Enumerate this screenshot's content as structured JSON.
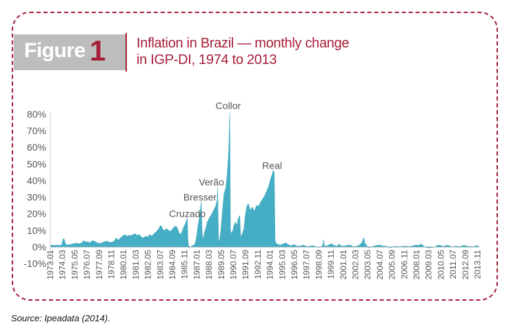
{
  "figure": {
    "label_word": "Figure",
    "label_number": "1",
    "title_line1": "Inflation in Brazil — monthly change",
    "title_line2": "in IGP-DI, 1974 to 2013",
    "accent_color": "#a51d36",
    "box_color": "#bdbdbe"
  },
  "source": "Source:  Ipeadata (2014).",
  "chart_data": {
    "type": "area",
    "title": "Inflation in Brazil — monthly change in IGP-DI, 1974 to 2013",
    "xlabel": "",
    "ylabel": "",
    "fill_color": "#45aec4",
    "ylim": [
      -10,
      80
    ],
    "yticks": [
      -10,
      0,
      10,
      20,
      30,
      40,
      50,
      60,
      70,
      80
    ],
    "ytick_labels": [
      "-10%",
      "0%",
      "10%",
      "20%",
      "30%",
      "40%",
      "50%",
      "60%",
      "70%",
      "80%"
    ],
    "xlim": [
      1973.0,
      2014.0
    ],
    "xtick_labels": [
      "1973.01",
      "1974.03",
      "1975.05",
      "1976.07",
      "1977.09",
      "1978.11",
      "1980.01",
      "1981.03",
      "1982.05",
      "1983.07",
      "1984.09",
      "1985.11",
      "1987.01",
      "1988.03",
      "1989.05",
      "1990.07",
      "1991.09",
      "1992.11",
      "1994.01",
      "1995.03",
      "1996.05",
      "1997.07",
      "1998.09",
      "1999.11",
      "2001.01",
      "2002.03",
      "2003.05",
      "2004.07",
      "2005.09",
      "2006.11",
      "2008.01",
      "2009.03",
      "2010.05",
      "2011.07",
      "2012.09",
      "2013.11"
    ],
    "grid": false,
    "annotations": [
      {
        "text": "Cruzado",
        "x": 1986.1,
        "y": 18
      },
      {
        "text": "Bresser",
        "x": 1987.3,
        "y": 28
      },
      {
        "text": "Verão",
        "x": 1988.4,
        "y": 37
      },
      {
        "text": "Collor",
        "x": 1990.0,
        "y": 83
      },
      {
        "text": "Real",
        "x": 1994.2,
        "y": 47
      }
    ],
    "series": [
      {
        "name": "IGP-DI monthly change (%)",
        "points": [
          [
            1973.0,
            1.2
          ],
          [
            1973.3,
            1.0
          ],
          [
            1973.6,
            1.1
          ],
          [
            1973.9,
            0.9
          ],
          [
            1974.1,
            1.5
          ],
          [
            1974.2,
            4.5
          ],
          [
            1974.3,
            5.0
          ],
          [
            1974.45,
            2.0
          ],
          [
            1974.6,
            1.2
          ],
          [
            1974.9,
            1.5
          ],
          [
            1975.2,
            2.0
          ],
          [
            1975.5,
            2.3
          ],
          [
            1975.8,
            2.0
          ],
          [
            1976.0,
            2.5
          ],
          [
            1976.2,
            3.8
          ],
          [
            1976.4,
            3.0
          ],
          [
            1976.6,
            3.2
          ],
          [
            1976.8,
            2.5
          ],
          [
            1977.0,
            3.8
          ],
          [
            1977.2,
            3.5
          ],
          [
            1977.4,
            2.8
          ],
          [
            1977.7,
            2.0
          ],
          [
            1977.9,
            2.5
          ],
          [
            1978.1,
            3.0
          ],
          [
            1978.4,
            3.5
          ],
          [
            1978.6,
            3.0
          ],
          [
            1978.9,
            2.8
          ],
          [
            1979.1,
            3.5
          ],
          [
            1979.3,
            5.5
          ],
          [
            1979.5,
            4.0
          ],
          [
            1979.7,
            5.5
          ],
          [
            1979.9,
            6.5
          ],
          [
            1980.1,
            7.5
          ],
          [
            1980.3,
            6.5
          ],
          [
            1980.5,
            7.0
          ],
          [
            1980.7,
            6.8
          ],
          [
            1980.9,
            7.5
          ],
          [
            1981.1,
            8.0
          ],
          [
            1981.3,
            7.0
          ],
          [
            1981.5,
            7.5
          ],
          [
            1981.7,
            6.0
          ],
          [
            1981.9,
            5.5
          ],
          [
            1982.1,
            6.5
          ],
          [
            1982.3,
            6.0
          ],
          [
            1982.5,
            7.5
          ],
          [
            1982.7,
            6.5
          ],
          [
            1982.9,
            8.0
          ],
          [
            1983.1,
            9.0
          ],
          [
            1983.3,
            10.5
          ],
          [
            1983.5,
            12.5
          ],
          [
            1983.6,
            13.0
          ],
          [
            1983.75,
            10.5
          ],
          [
            1983.9,
            10.0
          ],
          [
            1984.1,
            11.0
          ],
          [
            1984.3,
            10.0
          ],
          [
            1984.5,
            9.5
          ],
          [
            1984.7,
            11.0
          ],
          [
            1984.9,
            12.5
          ],
          [
            1985.1,
            12.0
          ],
          [
            1985.3,
            8.5
          ],
          [
            1985.45,
            7.5
          ],
          [
            1985.6,
            9.5
          ],
          [
            1985.75,
            12.0
          ],
          [
            1985.9,
            14.0
          ],
          [
            1986.0,
            16.0
          ],
          [
            1986.1,
            17.0
          ],
          [
            1986.15,
            4.0
          ],
          [
            1986.25,
            -0.5
          ],
          [
            1986.5,
            0.5
          ],
          [
            1986.8,
            1.5
          ],
          [
            1986.95,
            5.0
          ],
          [
            1987.1,
            12.0
          ],
          [
            1987.3,
            20.0
          ],
          [
            1987.42,
            27.5
          ],
          [
            1987.5,
            10.0
          ],
          [
            1987.58,
            4.0
          ],
          [
            1987.7,
            8.0
          ],
          [
            1987.85,
            11.0
          ],
          [
            1988.0,
            15.0
          ],
          [
            1988.2,
            17.5
          ],
          [
            1988.4,
            19.5
          ],
          [
            1988.6,
            22.0
          ],
          [
            1988.8,
            24.5
          ],
          [
            1988.95,
            28.5
          ],
          [
            1989.0,
            36.0
          ],
          [
            1989.08,
            4.0
          ],
          [
            1989.15,
            3.5
          ],
          [
            1989.3,
            10.0
          ],
          [
            1989.45,
            22.0
          ],
          [
            1989.6,
            32.0
          ],
          [
            1989.75,
            35.0
          ],
          [
            1989.9,
            43.0
          ],
          [
            1990.05,
            58.0
          ],
          [
            1990.15,
            81.0
          ],
          [
            1990.22,
            10.0
          ],
          [
            1990.32,
            8.0
          ],
          [
            1990.45,
            10.0
          ],
          [
            1990.55,
            13.0
          ],
          [
            1990.7,
            15.0
          ],
          [
            1990.85,
            13.0
          ],
          [
            1990.95,
            17.0
          ],
          [
            1991.1,
            19.0
          ],
          [
            1991.2,
            6.0
          ],
          [
            1991.35,
            8.0
          ],
          [
            1991.5,
            11.0
          ],
          [
            1991.65,
            20.0
          ],
          [
            1991.8,
            25.0
          ],
          [
            1991.95,
            26.0
          ],
          [
            1992.1,
            22.0
          ],
          [
            1992.3,
            24.0
          ],
          [
            1992.5,
            21.5
          ],
          [
            1992.7,
            25.0
          ],
          [
            1992.9,
            24.5
          ],
          [
            1993.1,
            27.0
          ],
          [
            1993.3,
            29.0
          ],
          [
            1993.5,
            31.0
          ],
          [
            1993.7,
            34.0
          ],
          [
            1993.9,
            37.0
          ],
          [
            1994.1,
            42.0
          ],
          [
            1994.2,
            43.5
          ],
          [
            1994.3,
            46.0
          ],
          [
            1994.4,
            45.0
          ],
          [
            1994.48,
            4.0
          ],
          [
            1994.6,
            2.0
          ],
          [
            1994.8,
            1.5
          ],
          [
            1995.0,
            1.2
          ],
          [
            1995.3,
            2.0
          ],
          [
            1995.5,
            2.5
          ],
          [
            1995.8,
            1.2
          ],
          [
            1996.0,
            0.8
          ],
          [
            1996.3,
            1.5
          ],
          [
            1996.6,
            0.5
          ],
          [
            1996.9,
            0.6
          ],
          [
            1997.2,
            1.2
          ],
          [
            1997.5,
            0.3
          ],
          [
            1997.8,
            0.5
          ],
          [
            1998.1,
            0.8
          ],
          [
            1998.4,
            0.2
          ],
          [
            1998.7,
            -0.3
          ],
          [
            1998.9,
            0.2
          ],
          [
            1999.05,
            1.5
          ],
          [
            1999.1,
            4.5
          ],
          [
            1999.18,
            1.0
          ],
          [
            1999.4,
            0.5
          ],
          [
            1999.7,
            1.5
          ],
          [
            1999.9,
            2.0
          ],
          [
            2000.1,
            1.0
          ],
          [
            2000.4,
            0.5
          ],
          [
            2000.6,
            1.8
          ],
          [
            2000.8,
            0.6
          ],
          [
            2001.1,
            0.6
          ],
          [
            2001.4,
            1.0
          ],
          [
            2001.7,
            1.2
          ],
          [
            2001.9,
            0.3
          ],
          [
            2002.2,
            0.3
          ],
          [
            2002.5,
            1.0
          ],
          [
            2002.7,
            2.0
          ],
          [
            2002.85,
            3.5
          ],
          [
            2002.95,
            5.8
          ],
          [
            2003.05,
            2.5
          ],
          [
            2003.2,
            1.2
          ],
          [
            2003.4,
            -0.5
          ],
          [
            2003.6,
            -0.2
          ],
          [
            2003.9,
            0.6
          ],
          [
            2004.2,
            1.0
          ],
          [
            2004.5,
            1.2
          ],
          [
            2004.8,
            0.6
          ],
          [
            2005.1,
            0.5
          ],
          [
            2005.4,
            -0.4
          ],
          [
            2005.7,
            -0.3
          ],
          [
            2005.9,
            0.5
          ],
          [
            2006.2,
            0.2
          ],
          [
            2006.5,
            0.3
          ],
          [
            2006.8,
            0.5
          ],
          [
            2007.1,
            0.4
          ],
          [
            2007.4,
            0.3
          ],
          [
            2007.7,
            0.8
          ],
          [
            2007.9,
            1.2
          ],
          [
            2008.2,
            1.0
          ],
          [
            2008.45,
            1.8
          ],
          [
            2008.7,
            0.5
          ],
          [
            2008.9,
            -0.3
          ],
          [
            2009.2,
            -0.5
          ],
          [
            2009.5,
            -0.3
          ],
          [
            2009.8,
            0.2
          ],
          [
            2010.1,
            1.2
          ],
          [
            2010.4,
            0.8
          ],
          [
            2010.6,
            0.2
          ],
          [
            2010.8,
            1.0
          ],
          [
            2011.1,
            0.9
          ],
          [
            2011.4,
            -0.1
          ],
          [
            2011.7,
            0.5
          ],
          [
            2011.9,
            0.4
          ],
          [
            2012.2,
            0.3
          ],
          [
            2012.5,
            1.0
          ],
          [
            2012.7,
            0.8
          ],
          [
            2012.9,
            0.4
          ],
          [
            2013.2,
            0.3
          ],
          [
            2013.5,
            0.2
          ],
          [
            2013.7,
            0.8
          ],
          [
            2013.95,
            0.5
          ]
        ]
      }
    ]
  }
}
